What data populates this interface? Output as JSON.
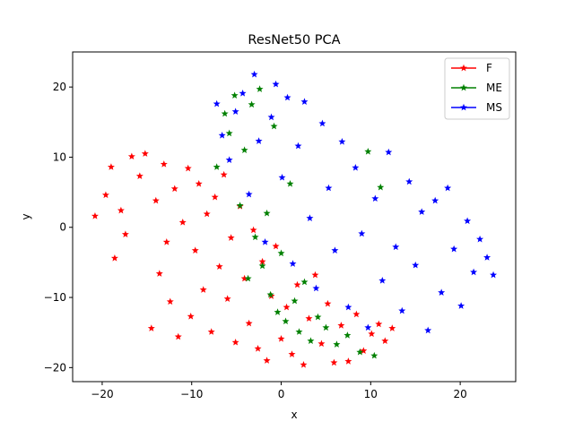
{
  "chart_data": {
    "type": "scatter",
    "title": "ResNet50 PCA",
    "xlabel": "x",
    "ylabel": "y",
    "xlim": [
      -23.3,
      26.2
    ],
    "ylim": [
      -22.0,
      25.0
    ],
    "xticks": [
      -20,
      -10,
      0,
      10,
      20
    ],
    "yticks": [
      -20,
      -10,
      0,
      10,
      20
    ],
    "xtick_labels": [
      "−20",
      "−10",
      "0",
      "10",
      "20"
    ],
    "ytick_labels": [
      "−20",
      "−10",
      "0",
      "10",
      "20"
    ],
    "grid": false,
    "legend_position": "top-right",
    "marker": "star",
    "series": [
      {
        "name": "F",
        "color": "#ff0000",
        "points": [
          [
            -20.8,
            1.6
          ],
          [
            -19.6,
            4.6
          ],
          [
            -19.0,
            8.6
          ],
          [
            -18.6,
            -4.4
          ],
          [
            -17.9,
            2.4
          ],
          [
            -17.4,
            -1.0
          ],
          [
            -16.7,
            10.1
          ],
          [
            -15.8,
            7.3
          ],
          [
            -15.2,
            10.5
          ],
          [
            -14.5,
            -14.4
          ],
          [
            -14.0,
            3.8
          ],
          [
            -13.6,
            -6.6
          ],
          [
            -13.1,
            9.0
          ],
          [
            -12.8,
            -2.1
          ],
          [
            -12.4,
            -10.6
          ],
          [
            -11.9,
            5.5
          ],
          [
            -11.5,
            -15.6
          ],
          [
            -11.0,
            0.7
          ],
          [
            -10.4,
            8.4
          ],
          [
            -10.1,
            -12.7
          ],
          [
            -9.6,
            -3.3
          ],
          [
            -9.2,
            6.2
          ],
          [
            -8.7,
            -8.9
          ],
          [
            -8.3,
            1.9
          ],
          [
            -7.8,
            -14.9
          ],
          [
            -7.4,
            4.3
          ],
          [
            -6.9,
            -5.6
          ],
          [
            -6.4,
            7.5
          ],
          [
            -6.0,
            -10.2
          ],
          [
            -5.6,
            -1.5
          ],
          [
            -5.1,
            -16.4
          ],
          [
            -4.6,
            3.0
          ],
          [
            -4.1,
            -7.3
          ],
          [
            -3.6,
            -13.7
          ],
          [
            -3.1,
            -0.4
          ],
          [
            -2.6,
            -17.3
          ],
          [
            -2.1,
            -4.9
          ],
          [
            -1.6,
            -19.0
          ],
          [
            -1.1,
            -9.8
          ],
          [
            -0.6,
            -2.7
          ],
          [
            0.0,
            -15.9
          ],
          [
            0.6,
            -11.4
          ],
          [
            1.2,
            -18.1
          ],
          [
            1.8,
            -8.2
          ],
          [
            2.5,
            -19.6
          ],
          [
            3.1,
            -13.0
          ],
          [
            3.8,
            -6.8
          ],
          [
            4.5,
            -16.6
          ],
          [
            5.2,
            -10.9
          ],
          [
            5.9,
            -19.3
          ],
          [
            6.7,
            -14.0
          ],
          [
            7.5,
            -19.1
          ],
          [
            8.4,
            -12.4
          ],
          [
            9.2,
            -17.6
          ],
          [
            10.1,
            -15.2
          ],
          [
            10.9,
            -13.8
          ],
          [
            11.6,
            -16.2
          ],
          [
            12.4,
            -14.4
          ]
        ]
      },
      {
        "name": "ME",
        "color": "#008000",
        "points": [
          [
            -7.2,
            8.6
          ],
          [
            -6.3,
            16.2
          ],
          [
            -5.8,
            13.4
          ],
          [
            -5.2,
            18.8
          ],
          [
            -4.6,
            3.1
          ],
          [
            -4.1,
            11.0
          ],
          [
            -3.7,
            -7.3
          ],
          [
            -3.3,
            17.5
          ],
          [
            -2.9,
            -1.4
          ],
          [
            -2.4,
            19.7
          ],
          [
            -2.1,
            -5.5
          ],
          [
            -1.6,
            2.0
          ],
          [
            -1.2,
            -9.6
          ],
          [
            -0.8,
            14.4
          ],
          [
            -0.4,
            -12.1
          ],
          [
            0.0,
            -3.7
          ],
          [
            0.5,
            -13.4
          ],
          [
            1.0,
            6.2
          ],
          [
            1.5,
            -10.5
          ],
          [
            2.0,
            -14.9
          ],
          [
            2.6,
            -7.8
          ],
          [
            3.3,
            -16.2
          ],
          [
            4.1,
            -12.8
          ],
          [
            5.0,
            -14.3
          ],
          [
            6.2,
            -16.7
          ],
          [
            7.4,
            -15.4
          ],
          [
            8.8,
            -17.8
          ],
          [
            9.7,
            10.8
          ],
          [
            10.4,
            -18.3
          ],
          [
            11.1,
            5.7
          ]
        ]
      },
      {
        "name": "MS",
        "color": "#0000ff",
        "points": [
          [
            -7.2,
            17.6
          ],
          [
            -6.6,
            13.1
          ],
          [
            -5.8,
            9.6
          ],
          [
            -5.1,
            16.5
          ],
          [
            -4.3,
            19.1
          ],
          [
            -3.6,
            4.7
          ],
          [
            -3.0,
            21.8
          ],
          [
            -2.5,
            12.3
          ],
          [
            -1.8,
            -2.1
          ],
          [
            -1.1,
            15.7
          ],
          [
            -0.6,
            20.4
          ],
          [
            0.1,
            7.1
          ],
          [
            0.7,
            18.5
          ],
          [
            1.3,
            -5.2
          ],
          [
            1.9,
            11.6
          ],
          [
            2.6,
            17.9
          ],
          [
            3.2,
            1.3
          ],
          [
            3.9,
            -8.7
          ],
          [
            4.6,
            14.8
          ],
          [
            5.3,
            5.6
          ],
          [
            6.0,
            -3.3
          ],
          [
            6.8,
            12.2
          ],
          [
            7.5,
            -11.4
          ],
          [
            8.3,
            8.5
          ],
          [
            9.0,
            -0.9
          ],
          [
            9.7,
            -14.3
          ],
          [
            10.5,
            4.1
          ],
          [
            11.3,
            -7.6
          ],
          [
            12.0,
            10.7
          ],
          [
            12.8,
            -2.8
          ],
          [
            13.5,
            -11.9
          ],
          [
            14.3,
            6.5
          ],
          [
            15.0,
            -5.4
          ],
          [
            15.7,
            2.2
          ],
          [
            16.4,
            -14.7
          ],
          [
            17.2,
            3.8
          ],
          [
            17.9,
            -9.3
          ],
          [
            18.6,
            5.6
          ],
          [
            19.3,
            -3.1
          ],
          [
            20.1,
            -11.2
          ],
          [
            20.8,
            0.9
          ],
          [
            21.5,
            -6.4
          ],
          [
            22.2,
            -1.7
          ],
          [
            23.0,
            -4.3
          ],
          [
            23.7,
            -6.8
          ]
        ]
      }
    ]
  }
}
